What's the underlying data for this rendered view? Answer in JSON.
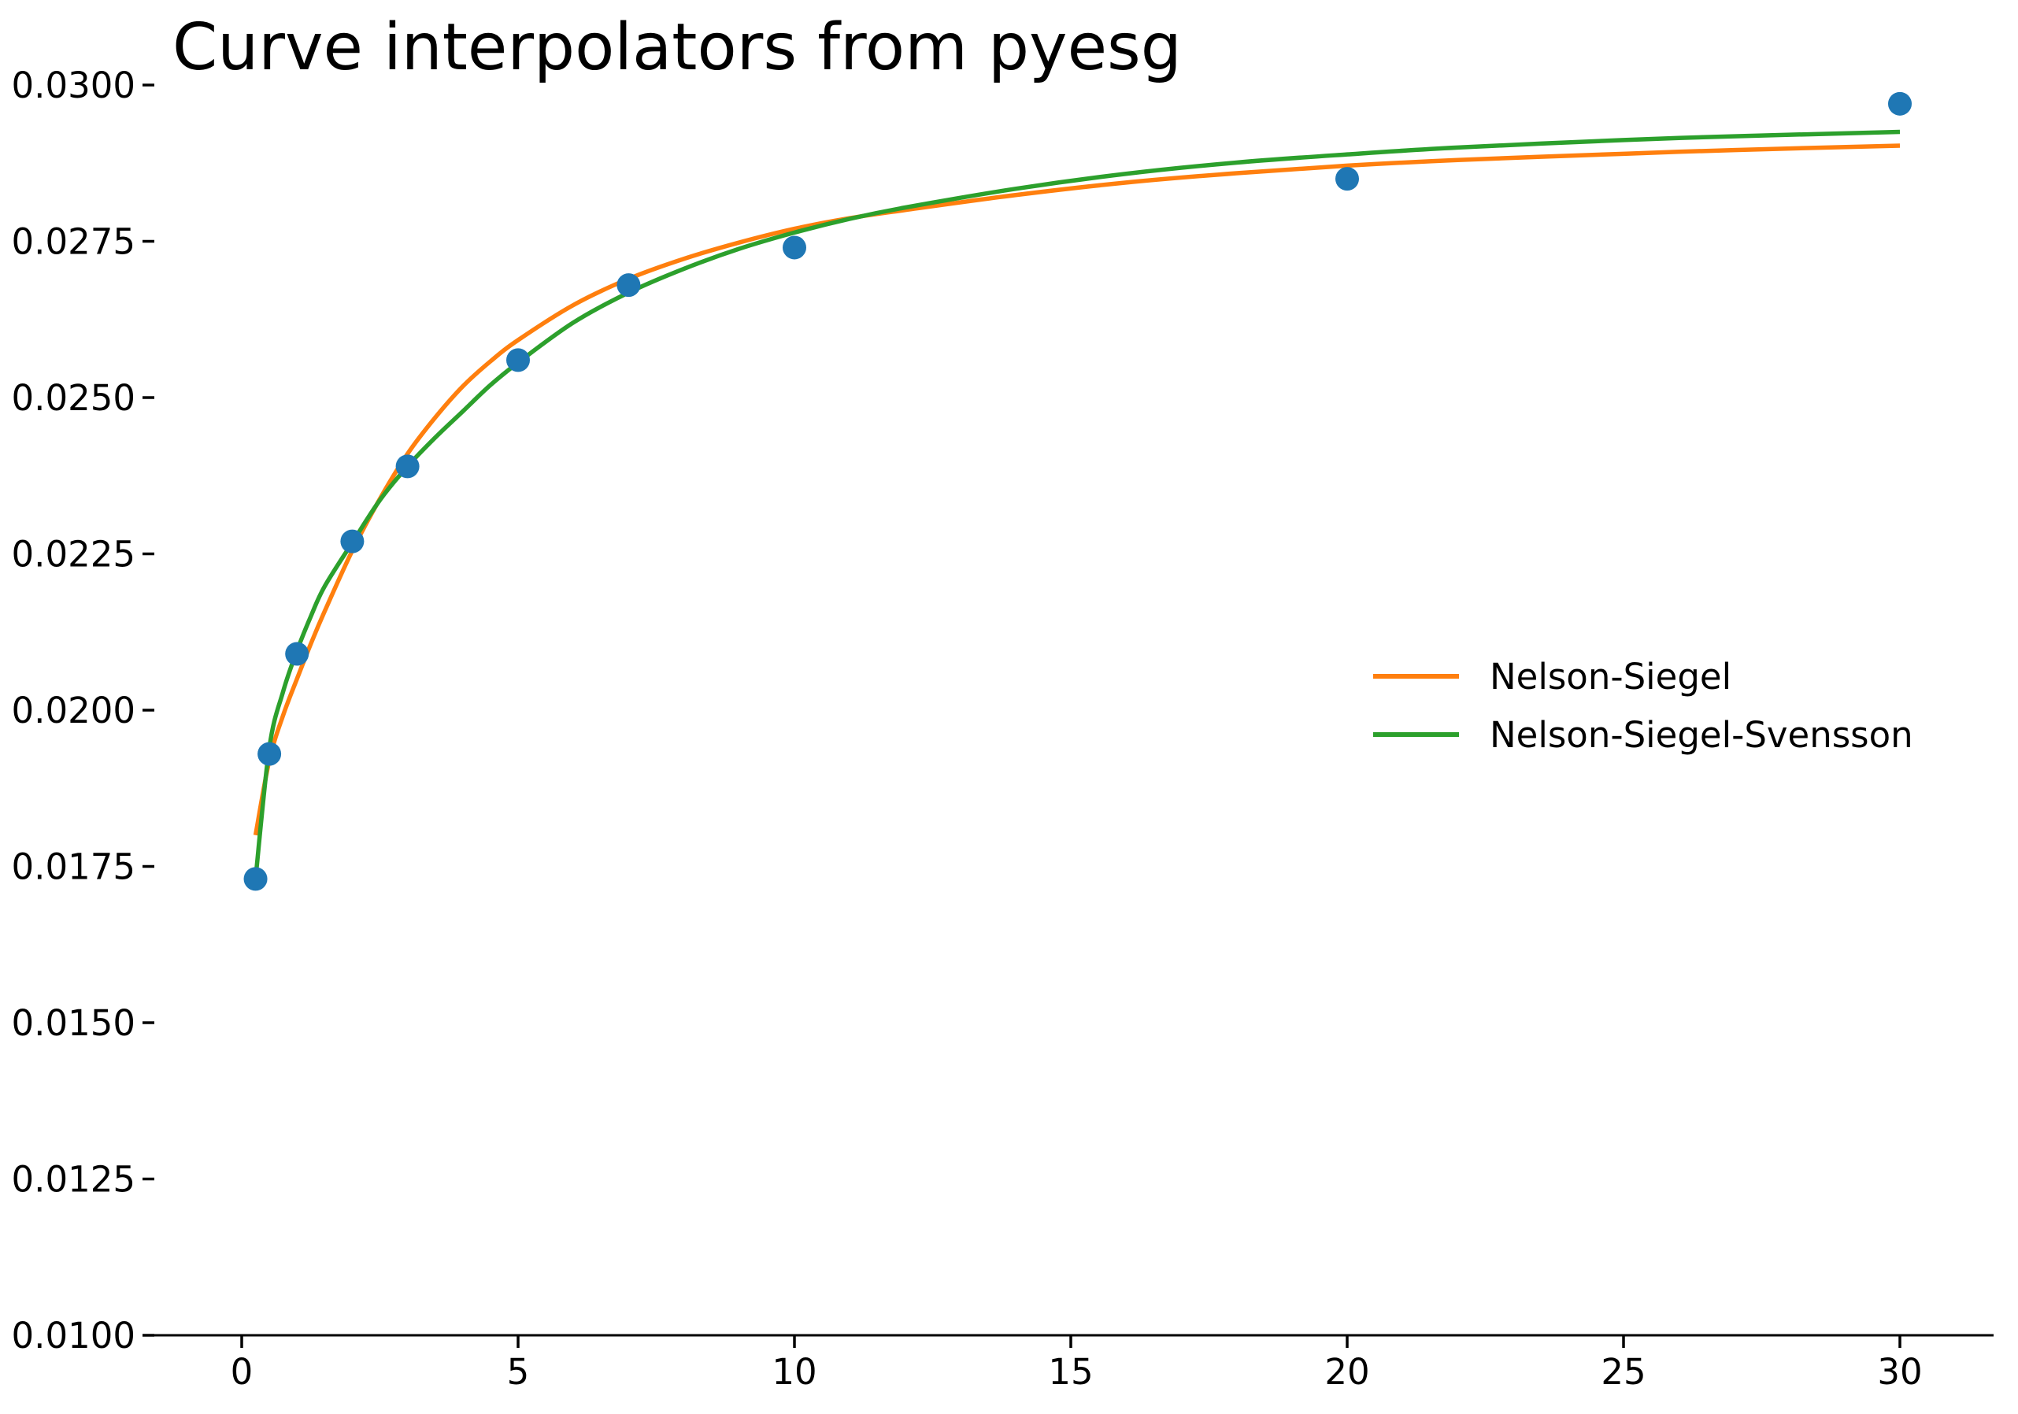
{
  "title": "Curve interpolators from pyesg",
  "colors": {
    "scatter": "#1f77b4",
    "nelson_siegel": "#ff7f0e",
    "nelson_siegel_svensson": "#2ca02c",
    "axis": "#000000",
    "text": "#000000",
    "background": "#ffffff"
  },
  "legend": {
    "position": "center right",
    "items": [
      {
        "label": "Nelson-Siegel",
        "color": "#ff7f0e"
      },
      {
        "label": "Nelson-Siegel-Svensson",
        "color": "#2ca02c"
      }
    ]
  },
  "chart_data": {
    "type": "line",
    "title": "Curve interpolators from pyesg",
    "xlabel": "",
    "ylabel": "",
    "xlim": [
      -1.6,
      31.7
    ],
    "ylim": [
      0.01,
      0.03
    ],
    "grid": false,
    "x_ticks": [
      0,
      5,
      10,
      15,
      20,
      25,
      30
    ],
    "x_tick_labels": [
      "0",
      "5",
      "10",
      "15",
      "20",
      "25",
      "30"
    ],
    "y_ticks": [
      0.01,
      0.0125,
      0.015,
      0.0175,
      0.02,
      0.0225,
      0.025,
      0.0275,
      0.03
    ],
    "y_tick_labels": [
      "0.0100",
      "0.0125",
      "0.0150",
      "0.0175",
      "0.0200",
      "0.0225",
      "0.0250",
      "0.0275",
      "0.0300"
    ],
    "scatter": {
      "name": "observed-rates",
      "color": "#1f77b4",
      "marker_radius_px": 15,
      "x": [
        0.25,
        0.5,
        1,
        2,
        3,
        5,
        7,
        10,
        20,
        30
      ],
      "y": [
        0.0173,
        0.0193,
        0.0209,
        0.0227,
        0.0239,
        0.0256,
        0.0268,
        0.0274,
        0.0285,
        0.0297
      ]
    },
    "series": [
      {
        "name": "Nelson-Siegel",
        "color": "#ff7f0e",
        "x": [
          0.25,
          0.5,
          0.75,
          1,
          1.25,
          1.5,
          2,
          2.5,
          3,
          3.5,
          4,
          4.5,
          5,
          6,
          7,
          8,
          9,
          10,
          11,
          12,
          14,
          16,
          18,
          20,
          22,
          25,
          27,
          30
        ],
        "y": [
          0.018,
          0.0192,
          0.01992,
          0.0205,
          0.02106,
          0.02158,
          0.02255,
          0.02338,
          0.0241,
          0.02468,
          0.02518,
          0.02558,
          0.02592,
          0.02648,
          0.0269,
          0.02722,
          0.02748,
          0.0277,
          0.02787,
          0.028,
          0.02824,
          0.02844,
          0.02859,
          0.02871,
          0.0288,
          0.0289,
          0.02896,
          0.02903
        ]
      },
      {
        "name": "Nelson-Siegel-Svensson",
        "color": "#2ca02c",
        "x": [
          0.25,
          0.5,
          0.75,
          1,
          1.25,
          1.5,
          2,
          2.5,
          3,
          3.5,
          4,
          4.5,
          5,
          6,
          7,
          8,
          9,
          10,
          11,
          12,
          14,
          16,
          18,
          20,
          22,
          25,
          27,
          30
        ],
        "y": [
          0.0173,
          0.0194,
          0.0203,
          0.02095,
          0.0215,
          0.02198,
          0.02268,
          0.02336,
          0.0239,
          0.02436,
          0.02478,
          0.0252,
          0.02556,
          0.0262,
          0.02668,
          0.02706,
          0.02738,
          0.02764,
          0.02786,
          0.02804,
          0.02834,
          0.02858,
          0.02876,
          0.02889,
          0.029,
          0.02912,
          0.02918,
          0.02925
        ]
      }
    ]
  }
}
